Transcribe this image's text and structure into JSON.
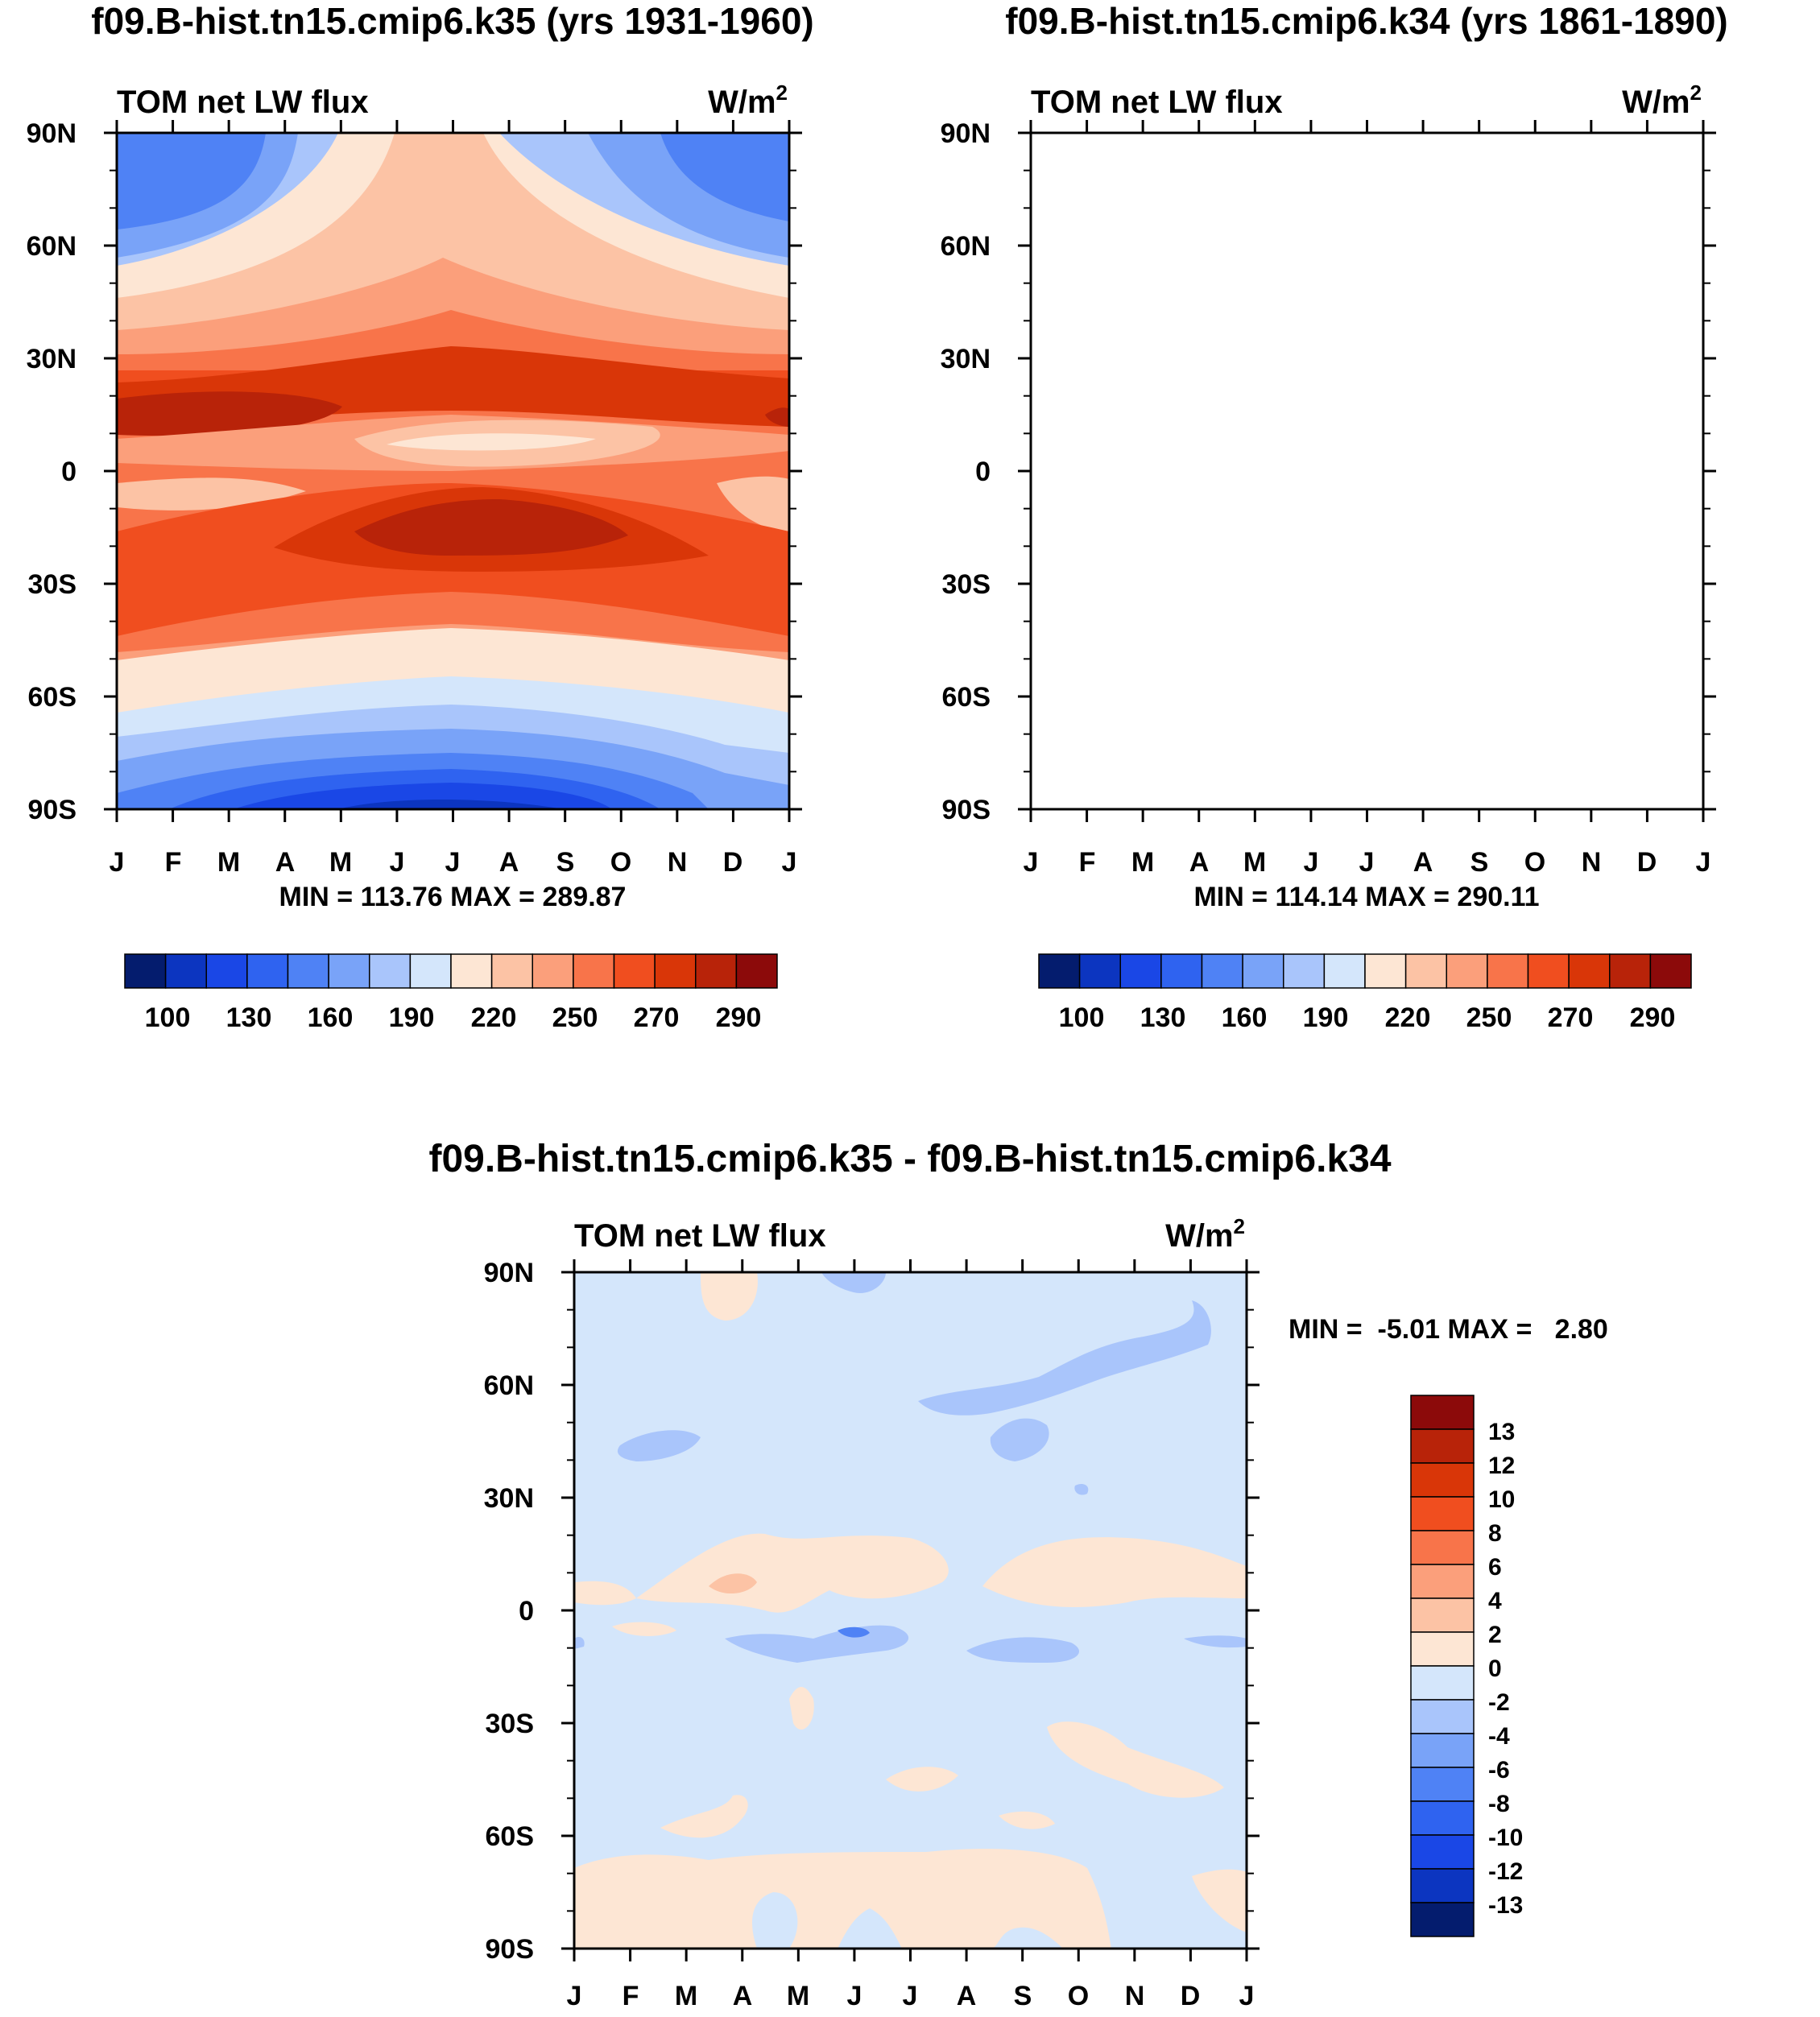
{
  "chart_data": [
    {
      "type": "heatmap",
      "title": "f09.B-hist.tn15.cmip6.k35 (yrs 1931-1960)",
      "subtitle_left": "TOM net LW flux",
      "subtitle_right": "W/m",
      "units_superscript": "2",
      "x_ticklabels": [
        "J",
        "F",
        "M",
        "A",
        "M",
        "J",
        "J",
        "A",
        "S",
        "O",
        "N",
        "D",
        "J"
      ],
      "y_ticklabels": [
        "90N",
        "60N",
        "30N",
        "0",
        "30S",
        "60S",
        "90S"
      ],
      "stats": "MIN = 113.76 MAX = 289.87",
      "colorbar_labels": [
        "100",
        "130",
        "160",
        "190",
        "220",
        "250",
        "270",
        "290"
      ],
      "levels": [
        100,
        115,
        130,
        145,
        160,
        175,
        190,
        205,
        220,
        235,
        250,
        260,
        270,
        280,
        290
      ],
      "colors": [
        "#041c6e",
        "#0c35c0",
        "#1a47e6",
        "#2f63f0",
        "#4f82f5",
        "#79a3f8",
        "#a9c5fb",
        "#d4e6fb",
        "#fde6d4",
        "#fcc3a5",
        "#fb9f7b",
        "#f8744a",
        "#f04e1f",
        "#d93608",
        "#b82309",
        "#8c0a0a"
      ],
      "min": 113.76,
      "max": 289.87
    },
    {
      "type": "heatmap",
      "title": "f09.B-hist.tn15.cmip6.k34 (yrs 1861-1890)",
      "subtitle_left": "TOM net LW flux",
      "subtitle_right": "W/m",
      "units_superscript": "2",
      "x_ticklabels": [
        "J",
        "F",
        "M",
        "A",
        "M",
        "J",
        "J",
        "A",
        "S",
        "O",
        "N",
        "D",
        "J"
      ],
      "y_ticklabels": [
        "90N",
        "60N",
        "30N",
        "0",
        "30S",
        "60S",
        "90S"
      ],
      "stats": "MIN = 114.14 MAX = 290.11",
      "colorbar_labels": [
        "100",
        "130",
        "160",
        "190",
        "220",
        "250",
        "270",
        "290"
      ],
      "levels": [
        100,
        115,
        130,
        145,
        160,
        175,
        190,
        205,
        220,
        235,
        250,
        260,
        270,
        280,
        290
      ],
      "colors": [
        "#041c6e",
        "#0c35c0",
        "#1a47e6",
        "#2f63f0",
        "#4f82f5",
        "#79a3f8",
        "#a9c5fb",
        "#d4e6fb",
        "#fde6d4",
        "#fcc3a5",
        "#fb9f7b",
        "#f8744a",
        "#f04e1f",
        "#d93608",
        "#b82309",
        "#8c0a0a"
      ],
      "min": 114.14,
      "max": 290.11
    },
    {
      "type": "heatmap",
      "title": "f09.B-hist.tn15.cmip6.k35 - f09.B-hist.tn15.cmip6.k34",
      "subtitle_left": "TOM net LW flux",
      "subtitle_right": "W/m",
      "units_superscript": "2",
      "x_ticklabels": [
        "J",
        "F",
        "M",
        "A",
        "M",
        "J",
        "J",
        "A",
        "S",
        "O",
        "N",
        "D",
        "J"
      ],
      "y_ticklabels": [
        "90N",
        "60N",
        "30N",
        "0",
        "30S",
        "60S",
        "90S"
      ],
      "stats": "MIN =  -5.01 MAX =   2.80",
      "colorbar_labels": [
        "13",
        "12",
        "10",
        "8",
        "6",
        "4",
        "2",
        "0",
        "-2",
        "-4",
        "-6",
        "-8",
        "-10",
        "-12",
        "-13"
      ],
      "colors": [
        "#8c0a0a",
        "#b82309",
        "#d93608",
        "#f04e1f",
        "#f8744a",
        "#fb9f7b",
        "#fcc3a5",
        "#fde6d4",
        "#d4e6fb",
        "#a9c5fb",
        "#79a3f8",
        "#4f82f5",
        "#2f63f0",
        "#1a47e6",
        "#0c35c0",
        "#041c6e"
      ],
      "min": -5.01,
      "max": 2.8
    }
  ]
}
